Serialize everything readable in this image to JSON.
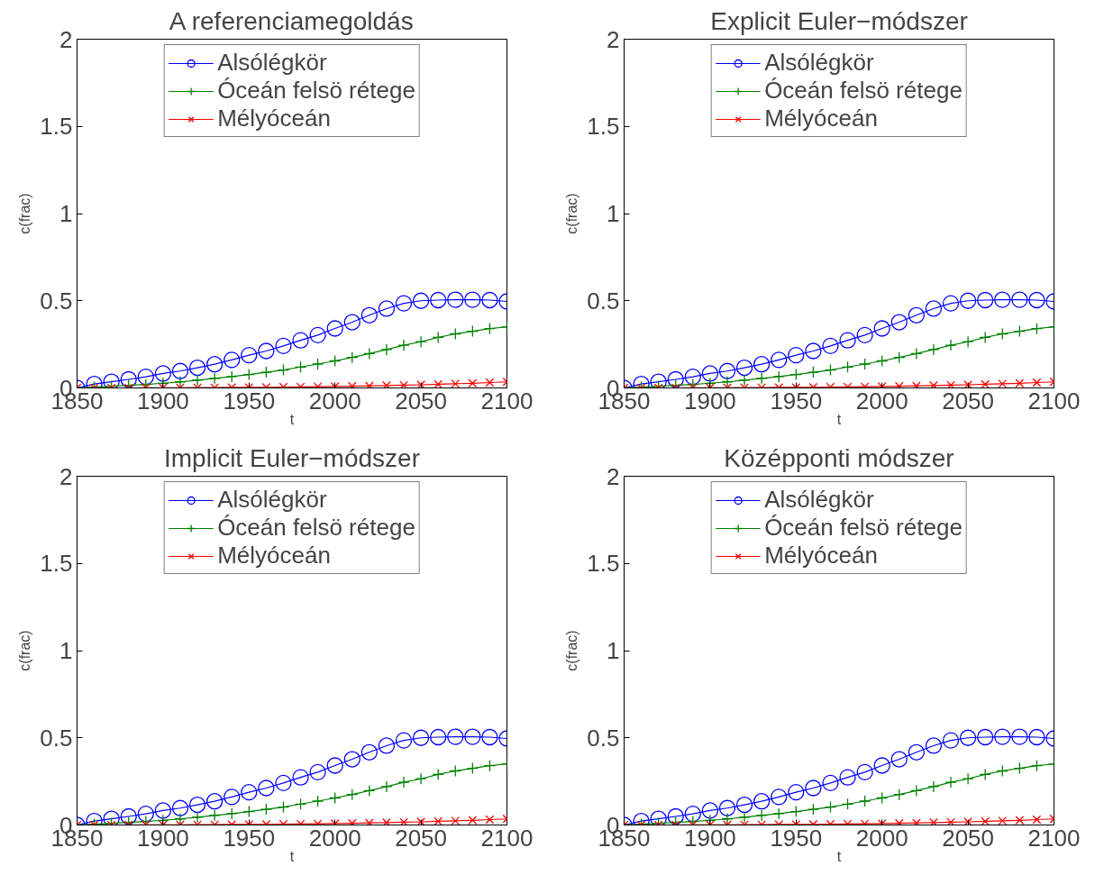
{
  "chart_data": [
    {
      "type": "line",
      "title": "A referenciamegoldás",
      "xlabel": "t",
      "ylabel": "c(frac)",
      "x": [
        1850,
        1860,
        1870,
        1880,
        1890,
        1900,
        1910,
        1920,
        1930,
        1940,
        1950,
        1960,
        1970,
        1980,
        1990,
        2000,
        2010,
        2020,
        2030,
        2040,
        2050,
        2060,
        2070,
        2080,
        2090,
        2100
      ],
      "xlim": [
        1850,
        2100
      ],
      "xticks": [
        1850,
        1900,
        1950,
        2000,
        2050,
        2100
      ],
      "ylim": [
        0,
        2
      ],
      "yticks": [
        0,
        0.5,
        1,
        1.5,
        2
      ],
      "grid": false,
      "legend": "top",
      "series": [
        {
          "name": "Alsólégkör",
          "color": "#0000ff",
          "marker": "circle",
          "values": [
            0,
            0.023,
            0.036,
            0.049,
            0.064,
            0.083,
            0.097,
            0.116,
            0.136,
            0.161,
            0.188,
            0.212,
            0.241,
            0.273,
            0.303,
            0.341,
            0.377,
            0.417,
            0.455,
            0.485,
            0.5,
            0.504,
            0.506,
            0.506,
            0.504,
            0.496
          ]
        },
        {
          "name": "Óceán felsö rétege",
          "color": "#008000",
          "marker": "cross",
          "values": [
            0,
            0.005,
            0.01,
            0.015,
            0.02,
            0.027,
            0.035,
            0.045,
            0.055,
            0.065,
            0.077,
            0.09,
            0.103,
            0.12,
            0.137,
            0.155,
            0.175,
            0.197,
            0.22,
            0.245,
            0.265,
            0.29,
            0.31,
            0.325,
            0.34,
            0.35
          ]
        },
        {
          "name": "Mélyóceán",
          "color": "#ff0000",
          "marker": "x",
          "values": [
            0,
            0,
            0,
            0,
            0.001,
            0.001,
            0.001,
            0.002,
            0.002,
            0.003,
            0.003,
            0.004,
            0.005,
            0.006,
            0.007,
            0.008,
            0.01,
            0.012,
            0.014,
            0.016,
            0.018,
            0.021,
            0.024,
            0.027,
            0.031,
            0.035
          ]
        }
      ]
    },
    {
      "type": "line",
      "title": "Explicit Euler−módszer",
      "xlabel": "t",
      "ylabel": "c(frac)",
      "x": [
        1850,
        1860,
        1870,
        1880,
        1890,
        1900,
        1910,
        1920,
        1930,
        1940,
        1950,
        1960,
        1970,
        1980,
        1990,
        2000,
        2010,
        2020,
        2030,
        2040,
        2050,
        2060,
        2070,
        2080,
        2090,
        2100
      ],
      "xlim": [
        1850,
        2100
      ],
      "xticks": [
        1850,
        1900,
        1950,
        2000,
        2050,
        2100
      ],
      "ylim": [
        0,
        2
      ],
      "yticks": [
        0,
        0.5,
        1,
        1.5,
        2
      ],
      "grid": false,
      "legend": "top",
      "series": [
        {
          "name": "Alsólégkör",
          "color": "#0000ff",
          "marker": "circle",
          "values": [
            0,
            0.023,
            0.036,
            0.049,
            0.064,
            0.083,
            0.097,
            0.116,
            0.136,
            0.161,
            0.188,
            0.212,
            0.241,
            0.273,
            0.303,
            0.341,
            0.377,
            0.417,
            0.455,
            0.485,
            0.5,
            0.504,
            0.506,
            0.506,
            0.504,
            0.496
          ]
        },
        {
          "name": "Óceán felsö rétege",
          "color": "#008000",
          "marker": "cross",
          "values": [
            0,
            0.005,
            0.01,
            0.015,
            0.02,
            0.027,
            0.035,
            0.045,
            0.055,
            0.065,
            0.077,
            0.09,
            0.103,
            0.12,
            0.137,
            0.155,
            0.175,
            0.197,
            0.22,
            0.245,
            0.265,
            0.29,
            0.31,
            0.325,
            0.34,
            0.35
          ]
        },
        {
          "name": "Mélyóceán",
          "color": "#ff0000",
          "marker": "x",
          "values": [
            0,
            0,
            0,
            0,
            0.001,
            0.001,
            0.001,
            0.002,
            0.002,
            0.003,
            0.003,
            0.004,
            0.005,
            0.006,
            0.007,
            0.008,
            0.01,
            0.012,
            0.014,
            0.016,
            0.018,
            0.021,
            0.024,
            0.027,
            0.031,
            0.035
          ]
        }
      ]
    },
    {
      "type": "line",
      "title": "Implicit Euler−módszer",
      "xlabel": "t",
      "ylabel": "c(frac)",
      "x": [
        1850,
        1860,
        1870,
        1880,
        1890,
        1900,
        1910,
        1920,
        1930,
        1940,
        1950,
        1960,
        1970,
        1980,
        1990,
        2000,
        2010,
        2020,
        2030,
        2040,
        2050,
        2060,
        2070,
        2080,
        2090,
        2100
      ],
      "xlim": [
        1850,
        2100
      ],
      "xticks": [
        1850,
        1900,
        1950,
        2000,
        2050,
        2100
      ],
      "ylim": [
        0,
        2
      ],
      "yticks": [
        0,
        0.5,
        1,
        1.5,
        2
      ],
      "grid": false,
      "legend": "top",
      "series": [
        {
          "name": "Alsólégkör",
          "color": "#0000ff",
          "marker": "circle",
          "values": [
            0,
            0.023,
            0.036,
            0.049,
            0.064,
            0.083,
            0.097,
            0.116,
            0.136,
            0.161,
            0.188,
            0.212,
            0.241,
            0.273,
            0.303,
            0.341,
            0.377,
            0.417,
            0.455,
            0.485,
            0.5,
            0.504,
            0.506,
            0.506,
            0.504,
            0.496
          ]
        },
        {
          "name": "Óceán felsö rétege",
          "color": "#008000",
          "marker": "cross",
          "values": [
            0,
            0.005,
            0.01,
            0.015,
            0.02,
            0.027,
            0.035,
            0.045,
            0.055,
            0.065,
            0.077,
            0.09,
            0.103,
            0.12,
            0.137,
            0.155,
            0.175,
            0.197,
            0.22,
            0.245,
            0.265,
            0.29,
            0.31,
            0.325,
            0.34,
            0.35
          ]
        },
        {
          "name": "Mélyóceán",
          "color": "#ff0000",
          "marker": "x",
          "values": [
            0,
            0,
            0,
            0,
            0.001,
            0.001,
            0.001,
            0.002,
            0.002,
            0.003,
            0.003,
            0.004,
            0.005,
            0.006,
            0.007,
            0.008,
            0.01,
            0.012,
            0.014,
            0.016,
            0.018,
            0.021,
            0.024,
            0.027,
            0.031,
            0.035
          ]
        }
      ]
    },
    {
      "type": "line",
      "title": "Középponti módszer",
      "xlabel": "t",
      "ylabel": "c(frac)",
      "x": [
        1850,
        1860,
        1870,
        1880,
        1890,
        1900,
        1910,
        1920,
        1930,
        1940,
        1950,
        1960,
        1970,
        1980,
        1990,
        2000,
        2010,
        2020,
        2030,
        2040,
        2050,
        2060,
        2070,
        2080,
        2090,
        2100
      ],
      "xlim": [
        1850,
        2100
      ],
      "xticks": [
        1850,
        1900,
        1950,
        2000,
        2050,
        2100
      ],
      "ylim": [
        0,
        2
      ],
      "yticks": [
        0,
        0.5,
        1,
        1.5,
        2
      ],
      "grid": false,
      "legend": "top",
      "series": [
        {
          "name": "Alsólégkör",
          "color": "#0000ff",
          "marker": "circle",
          "values": [
            0,
            0.023,
            0.036,
            0.049,
            0.064,
            0.083,
            0.097,
            0.116,
            0.136,
            0.161,
            0.188,
            0.212,
            0.241,
            0.273,
            0.303,
            0.341,
            0.377,
            0.417,
            0.455,
            0.485,
            0.5,
            0.504,
            0.506,
            0.506,
            0.504,
            0.496
          ]
        },
        {
          "name": "Óceán felsö rétege",
          "color": "#008000",
          "marker": "cross",
          "values": [
            0,
            0.005,
            0.01,
            0.015,
            0.02,
            0.027,
            0.035,
            0.045,
            0.055,
            0.065,
            0.077,
            0.09,
            0.103,
            0.12,
            0.137,
            0.155,
            0.175,
            0.197,
            0.22,
            0.245,
            0.265,
            0.29,
            0.31,
            0.325,
            0.34,
            0.35
          ]
        },
        {
          "name": "Mélyóceán",
          "color": "#ff0000",
          "marker": "x",
          "values": [
            0,
            0,
            0,
            0,
            0.001,
            0.001,
            0.001,
            0.002,
            0.002,
            0.003,
            0.003,
            0.004,
            0.005,
            0.006,
            0.007,
            0.008,
            0.01,
            0.012,
            0.014,
            0.016,
            0.018,
            0.021,
            0.024,
            0.027,
            0.031,
            0.035
          ]
        }
      ]
    }
  ]
}
